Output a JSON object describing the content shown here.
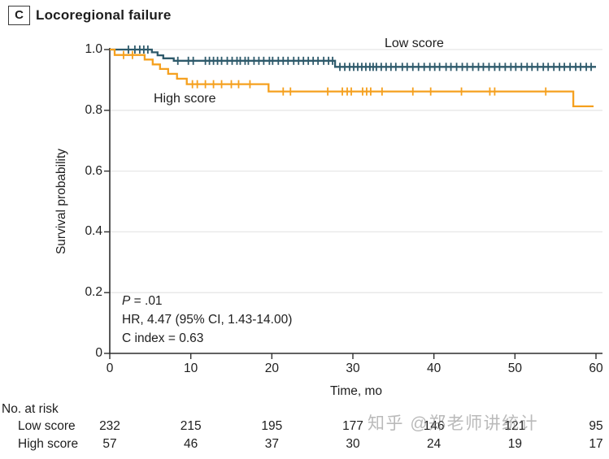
{
  "panel": {
    "label": "C",
    "title": "Locoregional failure"
  },
  "watermark": "知乎 @郑老师讲统计",
  "chart_data": {
    "type": "line",
    "subtype": "kaplan-meier-step-survival",
    "title": "Locoregional failure",
    "xlabel": "Time, mo",
    "ylabel": "Survival probability",
    "xlim": [
      0,
      60
    ],
    "ylim": [
      0,
      1.0
    ],
    "xticks": [
      0,
      10,
      20,
      30,
      40,
      50,
      60
    ],
    "yticks": [
      0,
      0.2,
      0.4,
      0.6,
      0.8,
      1.0
    ],
    "ytick_labels": [
      "0",
      "0.2",
      "0.4",
      "0.6",
      "0.8",
      "1.0"
    ],
    "grid": "horizontal",
    "grid_color": "#E7E7E7",
    "axis_color": "#2F2F2F",
    "series": [
      {
        "name": "Low score",
        "color": "#2E5A6B",
        "points": [
          [
            0,
            1.0
          ],
          [
            5.2,
            0.991
          ],
          [
            5.9,
            0.981
          ],
          [
            6.6,
            0.971
          ],
          [
            7.9,
            0.963
          ],
          [
            27.8,
            0.943
          ]
        ],
        "end_month": 60,
        "censor_months": [
          2.3,
          3.1,
          3.7,
          4.2,
          4.7,
          8.4,
          9.7,
          10.3,
          11.8,
          12.3,
          12.8,
          13.3,
          13.8,
          14.5,
          15.1,
          15.7,
          16.1,
          16.7,
          17.1,
          17.8,
          18.4,
          19.0,
          19.7,
          20.1,
          20.8,
          21.4,
          22.0,
          22.7,
          23.3,
          23.9,
          24.5,
          25.1,
          25.7,
          26.4,
          27.0,
          27.5,
          28.4,
          29.0,
          29.6,
          30.1,
          30.6,
          31.1,
          31.6,
          32.1,
          32.5,
          32.9,
          33.5,
          34.1,
          34.7,
          35.3,
          36.1,
          36.7,
          37.4,
          38.1,
          38.8,
          39.5,
          40.1,
          40.7,
          41.5,
          42.1,
          42.8,
          43.5,
          44.1,
          44.8,
          45.5,
          46.1,
          46.8,
          47.5,
          48.1,
          48.8,
          49.5,
          50.1,
          50.8,
          51.5,
          52.1,
          52.8,
          53.5,
          54.1,
          54.8,
          55.5,
          56.1,
          56.8,
          57.5,
          58.1,
          58.8,
          59.4
        ]
      },
      {
        "name": "High score",
        "color": "#F5A01E",
        "points": [
          [
            0,
            1.0
          ],
          [
            0.6,
            0.982
          ],
          [
            4.3,
            0.967
          ],
          [
            5.3,
            0.951
          ],
          [
            6.2,
            0.936
          ],
          [
            7.2,
            0.92
          ],
          [
            8.3,
            0.904
          ],
          [
            9.5,
            0.886
          ],
          [
            19.6,
            0.862
          ],
          [
            57.2,
            0.813
          ]
        ],
        "end_month": 59.7,
        "censor_months": [
          1.7,
          2.8,
          10.2,
          10.8,
          11.8,
          12.8,
          13.8,
          15.0,
          15.9,
          17.3,
          21.4,
          22.3,
          26.9,
          28.7,
          29.3,
          29.8,
          31.2,
          31.7,
          32.2,
          33.6,
          37.4,
          39.6,
          43.4,
          46.9,
          47.5,
          53.8
        ]
      }
    ],
    "annotations": {
      "p_symbol": "P",
      "p_rest": " = .01",
      "hr": "HR, 4.47 (95% CI, 1.43-14.00)",
      "c_index": "C index = 0.63"
    }
  },
  "risk_table": {
    "heading": "No. at risk",
    "columns_months": [
      0,
      10,
      20,
      30,
      40,
      50,
      60
    ],
    "rows": [
      {
        "label": "Low score",
        "values": [
          "232",
          "215",
          "195",
          "177",
          "146",
          "121",
          "95"
        ]
      },
      {
        "label": "High score",
        "values": [
          "57",
          "46",
          "37",
          "30",
          "24",
          "19",
          "17"
        ]
      }
    ]
  }
}
